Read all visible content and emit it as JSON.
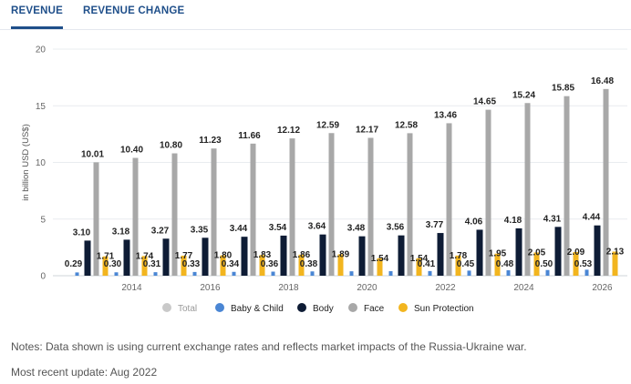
{
  "tabs": {
    "revenue": "REVENUE",
    "revenue_change": "REVENUE CHANGE"
  },
  "legend": [
    {
      "label": "Total",
      "color": "#c9c9c9",
      "muted": true
    },
    {
      "label": "Baby & Child",
      "color": "#4a86d4"
    },
    {
      "label": "Body",
      "color": "#0e1c35"
    },
    {
      "label": "Face",
      "color": "#a8a8a8"
    },
    {
      "label": "Sun Protection",
      "color": "#f2b51f"
    }
  ],
  "notes": {
    "line1": "Notes: Data shown is using current exchange rates and reflects market impacts of the Russia-Ukraine war.",
    "line2": "Most recent update: Aug 2022"
  },
  "chart_data": {
    "type": "bar",
    "categories": [
      "2013",
      "2014",
      "2015",
      "2016",
      "2017",
      "2018",
      "2019",
      "2020",
      "2021",
      "2022",
      "2023",
      "2024",
      "2025",
      "2026"
    ],
    "xticks": [
      "2014",
      "2016",
      "2018",
      "2020",
      "2022",
      "2024",
      "2026"
    ],
    "ylabel": "in billion USD (US$)",
    "ylim": [
      0,
      20
    ],
    "yticks": [
      0,
      5,
      10,
      15,
      20
    ],
    "grid": true,
    "legend_position": "bottom",
    "series": [
      {
        "name": "Baby & Child",
        "color": "#4a86d4",
        "values": [
          0.29,
          0.3,
          0.31,
          0.33,
          0.34,
          0.36,
          0.38,
          0.39,
          0.4,
          0.41,
          0.45,
          0.48,
          0.5,
          0.53
        ],
        "labels": [
          "0.29",
          "0.30",
          "0.31",
          "0.33",
          "0.34",
          "0.36",
          "0.38",
          "",
          "",
          "0.41",
          "0.45",
          "0.48",
          "0.50",
          "0.53"
        ]
      },
      {
        "name": "Body",
        "color": "#0e1c35",
        "values": [
          3.1,
          3.18,
          3.27,
          3.35,
          3.44,
          3.54,
          3.64,
          3.48,
          3.56,
          3.77,
          4.06,
          4.18,
          4.31,
          4.44
        ],
        "labels": [
          "3.10",
          "3.18",
          "3.27",
          "3.35",
          "3.44",
          "3.54",
          "3.64",
          "3.48",
          "3.56",
          "3.77",
          "4.06",
          "4.18",
          "4.31",
          "4.44"
        ]
      },
      {
        "name": "Face",
        "color": "#a8a8a8",
        "values": [
          10.01,
          10.4,
          10.8,
          11.23,
          11.66,
          12.12,
          12.59,
          12.17,
          12.58,
          13.46,
          14.65,
          15.24,
          15.85,
          16.48
        ],
        "labels": [
          "10.01",
          "10.40",
          "10.80",
          "11.23",
          "11.66",
          "12.12",
          "12.59",
          "12.17",
          "12.58",
          "13.46",
          "14.65",
          "15.24",
          "15.85",
          "16.48"
        ]
      },
      {
        "name": "Sun Protection",
        "color": "#f2b51f",
        "values": [
          1.71,
          1.74,
          1.77,
          1.8,
          1.83,
          1.86,
          1.89,
          1.54,
          1.54,
          1.78,
          1.95,
          2.05,
          2.09,
          2.13
        ],
        "labels": [
          "1.71",
          "1.74",
          "1.77",
          "1.80",
          "1.83",
          "1.86",
          "1.89",
          "1.54",
          "1.54",
          "1.78",
          "1.95",
          "2.05",
          "2.09",
          "2.13"
        ]
      }
    ]
  }
}
